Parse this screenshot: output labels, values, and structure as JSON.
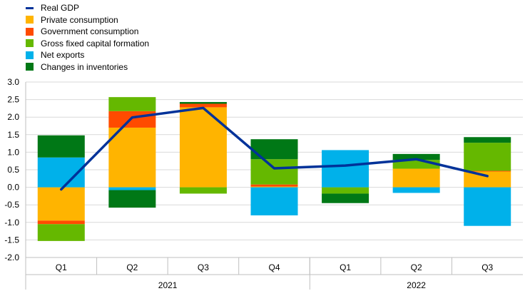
{
  "chart_data": {
    "type": "bar",
    "stacked": true,
    "categories": [
      "Q1",
      "Q2",
      "Q3",
      "Q4",
      "Q1",
      "Q2",
      "Q3"
    ],
    "years": [
      {
        "label": "2021",
        "count": 4
      },
      {
        "label": "2022",
        "count": 3
      }
    ],
    "ylim": [
      -2.0,
      3.0
    ],
    "yticks": [
      "-2.0",
      "-1.5",
      "-1.0",
      "-0.5",
      "0.0",
      "0.5",
      "1.0",
      "1.5",
      "2.0",
      "2.5",
      "3.0"
    ],
    "ytick_values": [
      -2.0,
      -1.5,
      -1.0,
      -0.5,
      0.0,
      0.5,
      1.0,
      1.5,
      2.0,
      2.5,
      3.0
    ],
    "grid": true,
    "legend_position": "top-left",
    "series": [
      {
        "name": "Private consumption",
        "color": "#FFB400",
        "values": [
          -0.95,
          1.7,
          2.28,
          0.02,
          0.0,
          0.53,
          0.45
        ]
      },
      {
        "name": "Government consumption",
        "color": "#FF4B00",
        "values": [
          -0.1,
          0.47,
          0.1,
          0.06,
          0.0,
          0.0,
          0.02
        ]
      },
      {
        "name": "Gross fixed capital formation",
        "color": "#65B800",
        "values": [
          -0.48,
          0.4,
          -0.18,
          0.72,
          -0.18,
          0.25,
          0.8
        ]
      },
      {
        "name": "Net exports",
        "color": "#00B1EA",
        "values": [
          0.85,
          -0.08,
          0.0,
          -0.8,
          1.06,
          -0.16,
          -1.1
        ]
      },
      {
        "name": "Changes in inventories",
        "color": "#007816",
        "values": [
          0.63,
          -0.5,
          0.05,
          0.57,
          -0.27,
          0.17,
          0.16
        ]
      }
    ],
    "line": {
      "name": "Real GDP",
      "color": "#003299",
      "values": [
        -0.06,
        1.99,
        2.26,
        0.54,
        0.62,
        0.8,
        0.32
      ]
    }
  }
}
